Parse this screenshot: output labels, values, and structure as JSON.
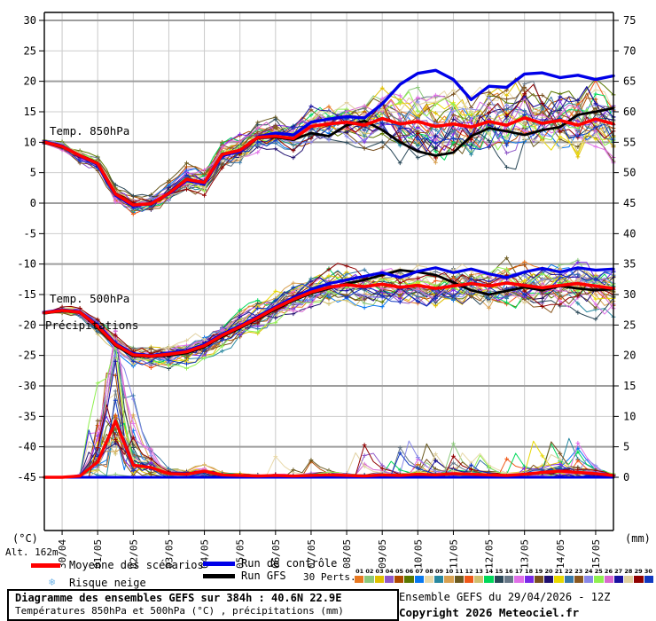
{
  "axes": {
    "left_unit": "(°C)",
    "right_unit": "(mm)",
    "altitude": "Alt. 162m",
    "left_ticks": [
      30,
      25,
      20,
      15,
      10,
      5,
      0,
      -5,
      -10,
      -15,
      -20,
      -25,
      -30,
      -35,
      -40,
      -45
    ],
    "right_ticks": [
      75,
      70,
      65,
      60,
      55,
      50,
      45,
      40,
      35,
      30,
      25,
      20,
      15,
      10,
      5,
      0
    ],
    "date_labels": [
      "30/04",
      "01/05",
      "02/05",
      "03/05",
      "04/05",
      "05/05",
      "06/05",
      "07/05",
      "08/05",
      "09/05",
      "10/05",
      "11/05",
      "12/05",
      "13/05",
      "14/05",
      "15/05"
    ]
  },
  "plot_labels": {
    "t850": "Temp. 850hPa",
    "t500": "Temp. 500hPa",
    "precip": "Précipitations"
  },
  "legend": {
    "mean": "Moyenne des scénarios",
    "control": "Run de contrôle",
    "gfs": "Run GFS",
    "perts_label": "30 Perts.",
    "snow": "Risque neige",
    "snow_icon": "❄",
    "mean_color": "#ff0000",
    "control_color": "#0000e8",
    "gfs_color": "#000000"
  },
  "perts": {
    "numbers": [
      "01",
      "02",
      "03",
      "04",
      "05",
      "06",
      "07",
      "08",
      "09",
      "10",
      "11",
      "12",
      "13",
      "14",
      "15",
      "16",
      "17",
      "18",
      "19",
      "20",
      "21",
      "22",
      "23",
      "24",
      "25",
      "26",
      "27",
      "28",
      "29",
      "30"
    ],
    "colors": [
      "#e87820",
      "#8cc87c",
      "#e0c000",
      "#9058c8",
      "#b04a00",
      "#5a7800",
      "#0878f0",
      "#e8d8a8",
      "#2888a0",
      "#d8a050",
      "#6b5a20",
      "#f05818",
      "#d0c070",
      "#00d85a",
      "#2a4858",
      "#687888",
      "#e070e8",
      "#7828e8",
      "#785020",
      "#201070",
      "#e8d800",
      "#3878a8",
      "#8a5820",
      "#8888e8",
      "#90f050",
      "#d868d0",
      "#1810a0",
      "#e0d0a0",
      "#900000",
      "#1038c0"
    ]
  },
  "info_box": {
    "line1": "Diagramme des ensembles GEFS sur 384h : 40.6N 22.9E",
    "line2": "Températures 850hPa et 500hPa (°C) , précipitations (mm)"
  },
  "footer": {
    "run": "Ensemble GEFS du 29/04/2026 - 12Z",
    "copyright": "Copyright 2026 Meteociel.fr"
  },
  "chart_data": {
    "type": "line",
    "x_start_hour": 0,
    "x_step_hours": 12,
    "x_range_hours": 384,
    "x_start_date": "29/04 12Z",
    "ylim_c": [
      -45,
      30
    ],
    "ylim_mm": [
      0,
      75
    ],
    "grid": true,
    "ensemble_members": 30,
    "series": [
      {
        "id": "m850",
        "name": "Temp. 850hPa - Moyenne des scénarios",
        "color": "#ff0000",
        "values": [
          10,
          9.3,
          7.8,
          6.5,
          1.5,
          -0.3,
          -0.1,
          1.6,
          3.9,
          3.4,
          8,
          8.7,
          10.8,
          11,
          10.6,
          12.6,
          13,
          13.3,
          12.8,
          13.9,
          13,
          13.4,
          12.6,
          13,
          12.5,
          13.4,
          12.8,
          14,
          13.1,
          13.6,
          12.8,
          13.8,
          13
        ]
      },
      {
        "id": "c850",
        "name": "Temp. 850hPa - Run de contrôle",
        "color": "#0000e8",
        "values": [
          10.1,
          9.4,
          7.7,
          6.4,
          1.3,
          -0.5,
          0,
          1.5,
          3.7,
          3.2,
          7.8,
          8.5,
          10.9,
          11.5,
          11.2,
          13.3,
          13.8,
          14.2,
          14,
          16.3,
          19.5,
          21.3,
          21.8,
          20.3,
          17,
          19.2,
          19,
          21.2,
          21.4,
          20.6,
          21,
          20.3,
          20.9
        ]
      },
      {
        "id": "g850",
        "name": "Temp. 850hPa - Run GFS",
        "color": "#000000",
        "values": [
          9.9,
          9.2,
          7.9,
          6.6,
          1.6,
          -0.2,
          -0.2,
          1.7,
          4,
          3.3,
          8.1,
          8.6,
          10.7,
          10.8,
          10.4,
          11.5,
          11,
          12.8,
          13.5,
          12,
          10,
          8.5,
          7.8,
          8.3,
          11,
          12.3,
          11.8,
          11.2,
          12,
          12.5,
          14.5,
          15,
          15.6
        ]
      },
      {
        "id": "m500",
        "name": "Temp. 500hPa - Moyenne des scénarios",
        "color": "#ff0000",
        "values": [
          -18,
          -17.6,
          -17.9,
          -20.2,
          -23.2,
          -24.9,
          -25.1,
          -24.8,
          -24.4,
          -23.4,
          -21.7,
          -20.3,
          -18.8,
          -17.2,
          -15.8,
          -14.6,
          -13.8,
          -13.4,
          -13.7,
          -13.3,
          -13.8,
          -13.5,
          -14,
          -13.6,
          -13.2,
          -13.6,
          -13.1,
          -13.5,
          -13.9,
          -13.5,
          -13.2,
          -13.6,
          -14
        ]
      },
      {
        "id": "c500",
        "name": "Temp. 500hPa - Run de contrôle",
        "color": "#0000e8",
        "values": [
          -17.9,
          -17.5,
          -17.8,
          -20,
          -23,
          -24.7,
          -25,
          -24.6,
          -24.2,
          -23.2,
          -21.5,
          -20.1,
          -18.6,
          -17,
          -15.5,
          -14.2,
          -13.2,
          -12.6,
          -12,
          -11.4,
          -12.2,
          -11.2,
          -10.6,
          -11.4,
          -10.8,
          -11.6,
          -12.2,
          -11.3,
          -10.7,
          -11.3,
          -10.6,
          -11,
          -10.8
        ]
      },
      {
        "id": "g500",
        "name": "Temp. 500hPa - Run GFS",
        "color": "#000000",
        "values": [
          -18.1,
          -17.7,
          -18,
          -20.4,
          -23.4,
          -25.1,
          -25.2,
          -25,
          -24.6,
          -23.6,
          -21.9,
          -20.5,
          -19,
          -17.4,
          -16,
          -14.8,
          -14,
          -13.2,
          -12.6,
          -11.8,
          -11,
          -11.3,
          -11.8,
          -13,
          -14.3,
          -15,
          -14.4,
          -13.8,
          -14.3,
          -13.6,
          -14,
          -14.3,
          -14.1
        ]
      },
      {
        "id": "mp",
        "name": "Précipitations - Moyenne des scénarios (mm)",
        "color": "#ff0000",
        "values": [
          0,
          0,
          0.2,
          2.5,
          9.2,
          2,
          1.6,
          0.6,
          0.5,
          1,
          0.4,
          0.3,
          0.2,
          0.3,
          0.2,
          0.3,
          0.4,
          0.3,
          0.2,
          0.4,
          0.3,
          0.5,
          0.4,
          0.6,
          0.5,
          0.4,
          0.3,
          0.5,
          0.8,
          1,
          0.8,
          0.6,
          0.3
        ]
      },
      {
        "id": "cp",
        "name": "Précipitations - Run de contrôle (mm)",
        "color": "#0000e8",
        "values": [
          0,
          0,
          0,
          0,
          0,
          0,
          0,
          0,
          0,
          0,
          0,
          0,
          0,
          0,
          0,
          0,
          0,
          0,
          0,
          0,
          0,
          0,
          0,
          0,
          0,
          0,
          0,
          0,
          0,
          0,
          0,
          0,
          0
        ]
      },
      {
        "id": "gp",
        "name": "Précipitations - Run GFS (mm)",
        "color": "#000000",
        "values": [
          0,
          0,
          0,
          0,
          0,
          0,
          0,
          0,
          0,
          0,
          0,
          0,
          0,
          0,
          0,
          0,
          0,
          0,
          0,
          0,
          0,
          0,
          0,
          0,
          0,
          0,
          0,
          0,
          0,
          0,
          0,
          0,
          0
        ]
      }
    ],
    "spread_envelope_850_c": [
      [
        0,
        0.4
      ],
      [
        24,
        0.9
      ],
      [
        60,
        1.4
      ],
      [
        120,
        1.8
      ],
      [
        168,
        2.2
      ],
      [
        216,
        3.0
      ],
      [
        240,
        4.2
      ],
      [
        384,
        5.0
      ]
    ],
    "spread_envelope_500_c": [
      [
        0,
        0.3
      ],
      [
        24,
        0.8
      ],
      [
        60,
        1.6
      ],
      [
        120,
        2.2
      ],
      [
        216,
        2.6
      ],
      [
        384,
        3.6
      ]
    ],
    "precip_member_max_mm": 24
  }
}
